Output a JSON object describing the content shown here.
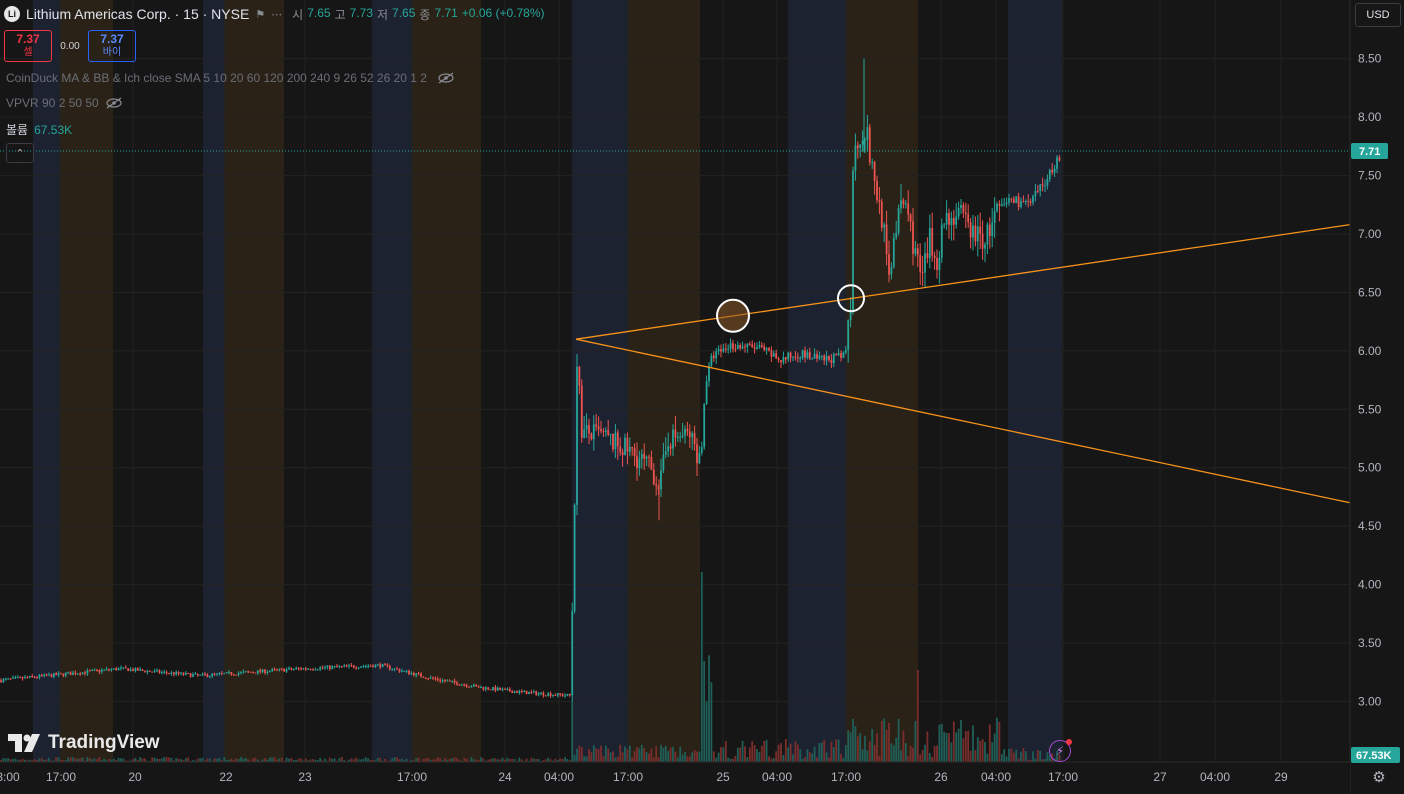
{
  "header": {
    "symbol_badge": "Li",
    "title": "Lithium Americas Corp. · 15 · NYSE",
    "ohlc": [
      {
        "label": "시",
        "value": "7.65"
      },
      {
        "label": "고",
        "value": "7.73"
      },
      {
        "label": "저",
        "value": "7.65"
      },
      {
        "label": "종",
        "value": "7.71"
      }
    ],
    "change": "+0.06 (+0.78%)"
  },
  "trade": {
    "sell_price": "7.37",
    "sell_label": "셀",
    "spread": "0.00",
    "buy_price": "7.37",
    "buy_label": "바이"
  },
  "indicators": [
    {
      "text": "CoinDuck MA & BB & Ich close SMA 5 10 20 60 120 200 240 9 26 52 26 20 1 2"
    },
    {
      "text": "VPVR 90 2 50 50"
    }
  ],
  "volume": {
    "label": "볼륨",
    "value": "67.53K"
  },
  "currency": "USD",
  "branding": {
    "name": "TradingView"
  },
  "colors": {
    "up": "#26a69a",
    "down": "#ef5350",
    "trendline": "#f7931a",
    "session_pre": "#1d2230",
    "session_post": "#2a2217"
  },
  "chart_data": {
    "type": "candlestick",
    "y_axis": {
      "ticks": [
        "8.50",
        "8.00",
        "7.50",
        "7.00",
        "6.50",
        "6.00",
        "5.50",
        "5.00",
        "4.50",
        "4.00",
        "3.50",
        "3.00"
      ],
      "range": [
        2.55,
        8.9
      ]
    },
    "x_axis": {
      "ticks": [
        "3:00",
        "17:00",
        "20",
        "22",
        "23",
        "17:00",
        "24",
        "04:00",
        "17:00",
        "25",
        "04:00",
        "17:00",
        "26",
        "04:00",
        "17:00",
        "27",
        "04:00",
        "29"
      ]
    },
    "last_price": "7.71",
    "last_volume": "67.53K",
    "key_prices": {
      "pre_breakout": 3.05,
      "gap_high": 6.1,
      "post_gap_low": 4.55,
      "consolidation": 5.95,
      "breakout_high": 8.5,
      "last": 7.71
    },
    "annotations": {
      "trendlines": [
        {
          "from": {
            "x": "24 04:00",
            "y": 6.1
          },
          "to": {
            "x": "29",
            "y": 7.08
          }
        },
        {
          "from": {
            "x": "24 04:00",
            "y": 6.1
          },
          "to": {
            "x": "29",
            "y": 4.7
          }
        }
      ],
      "circles": [
        {
          "at": {
            "x": "25",
            "y": 6.3
          }
        },
        {
          "at": {
            "x": "25 17:00",
            "y": 6.45
          }
        }
      ]
    }
  }
}
